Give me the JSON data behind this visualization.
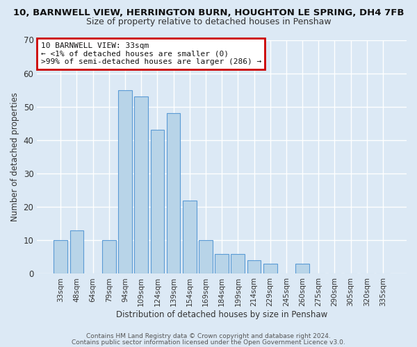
{
  "title_line1": "10, BARNWELL VIEW, HERRINGTON BURN, HOUGHTON LE SPRING, DH4 7FB",
  "title_line2": "Size of property relative to detached houses in Penshaw",
  "xlabel": "Distribution of detached houses by size in Penshaw",
  "ylabel": "Number of detached properties",
  "bar_labels": [
    "33sqm",
    "48sqm",
    "64sqm",
    "79sqm",
    "94sqm",
    "109sqm",
    "124sqm",
    "139sqm",
    "154sqm",
    "169sqm",
    "184sqm",
    "199sqm",
    "214sqm",
    "229sqm",
    "245sqm",
    "260sqm",
    "275sqm",
    "290sqm",
    "305sqm",
    "320sqm",
    "335sqm"
  ],
  "bar_heights": [
    10,
    13,
    0,
    10,
    55,
    53,
    43,
    48,
    22,
    10,
    6,
    6,
    4,
    3,
    0,
    3,
    0,
    0,
    0,
    0,
    0
  ],
  "bar_color": "#b8d4e8",
  "bar_edge_color": "#5b9bd5",
  "highlight_bar_index": 0,
  "highlight_color": "#c8d8ea",
  "ylim": [
    0,
    70
  ],
  "yticks": [
    0,
    10,
    20,
    30,
    40,
    50,
    60,
    70
  ],
  "annotation_title": "10 BARNWELL VIEW: 33sqm",
  "annotation_line2": "← <1% of detached houses are smaller (0)",
  "annotation_line3": ">99% of semi-detached houses are larger (286) →",
  "annotation_box_color": "#ffffff",
  "annotation_box_edge": "#cc0000",
  "footer_line1": "Contains HM Land Registry data © Crown copyright and database right 2024.",
  "footer_line2": "Contains public sector information licensed under the Open Government Licence v3.0.",
  "background_color": "#dce9f5",
  "grid_color": "#ffffff",
  "title1_fontsize": 9.5,
  "title2_fontsize": 9.0,
  "axis_label_fontsize": 8.5,
  "tick_fontsize": 7.5,
  "annotation_fontsize": 8.0,
  "footer_fontsize": 6.5
}
